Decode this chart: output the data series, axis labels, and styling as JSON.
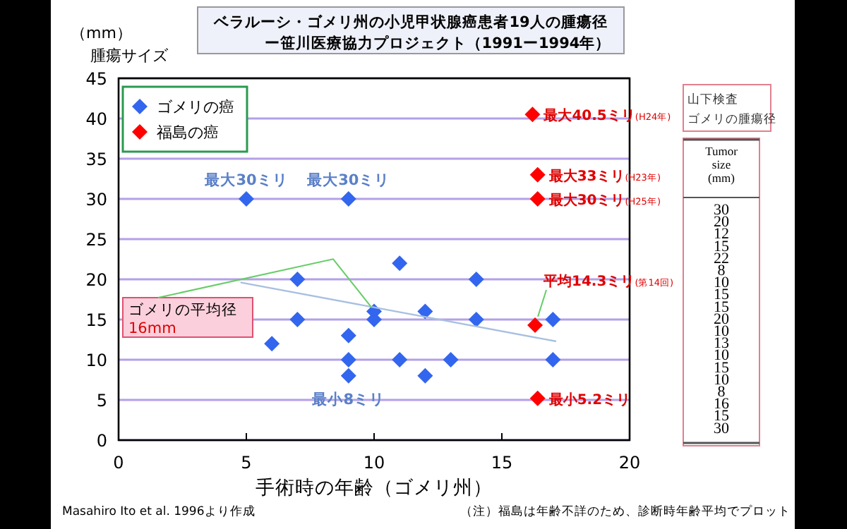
{
  "chart_data": [
    {
      "type": "scatter",
      "title": "ベラルーシ・ゴメリ州の小児甲状腺癌患者19人の腫瘍径",
      "subtitle": "ー笹川医療協力プロジェクト（1991ー1994年）",
      "ylabel": "腫瘍サイズ",
      "xlabel": "手術時の年齢（ゴメリ州）",
      "xlim": [
        0,
        20
      ],
      "xticks": [
        0,
        5,
        10,
        15,
        20
      ],
      "ylim": [
        0,
        45
      ],
      "yticks": [
        0,
        5,
        10,
        15,
        20,
        25,
        30,
        35,
        40,
        45
      ],
      "grid": "y",
      "legend": "top left",
      "marker": "diamond",
      "series": [
        {
          "name": "ゴメリの癌",
          "color": "#3366ee",
          "x": [
            5,
            9,
            7,
            7,
            6,
            9,
            10,
            10,
            11,
            12,
            9,
            9,
            11,
            12,
            13,
            14,
            14,
            17,
            17
          ],
          "values": [
            30,
            30,
            20,
            15,
            12,
            13,
            16,
            15,
            22,
            16,
            10,
            8,
            10,
            8,
            10,
            20,
            15,
            15,
            10
          ]
        },
        {
          "name": "福島の癌",
          "color": "#ff0000",
          "x": [
            16.2,
            16.4,
            16.4,
            16.3,
            16.4
          ],
          "values": [
            40.5,
            33,
            30,
            14.3,
            5.2
          ]
        },
        {
          "type": "line",
          "marker": "none",
          "color": "#a8c0e0",
          "x": [
            4.8,
            17.1
          ],
          "values": [
            19.6,
            12.3
          ]
        }
      ],
      "annotations": [
        {
          "text": "最大30ミリ",
          "x": 5,
          "y": 30
        },
        {
          "text": "最大30ミリ",
          "x": 9,
          "y": 30
        },
        {
          "text": "最小8ミリ",
          "x": 9,
          "y": 8
        },
        {
          "text": "最大40.5ミリ(H24年)",
          "x": 16.2,
          "y": 40.5
        },
        {
          "text": "最大33ミリ(H23年)",
          "x": 16.4,
          "y": 33
        },
        {
          "text": "最大30ミリ(H25年)",
          "x": 16.4,
          "y": 30
        },
        {
          "text": "平均14.3ミリ(第14回)",
          "x": 16.3,
          "y": 14.3
        },
        {
          "text": "最小5.2ミリ",
          "x": 16.4,
          "y": 5.2
        },
        {
          "text": "ゴメリの平均径\n16mm",
          "x": 10,
          "y": 15.5
        },
        "（mm）",
        "Masahiro Ito et al. 1996より作成",
        "（注）福島は年齢不詳のため、診断時年齢平均でプロット"
      ]
    },
    {
      "type": "other",
      "title": "山下検査",
      "subtitle": "ゴメリの腫瘍径",
      "ylabel": "Tumor\nsize\n(mm)",
      "data_labels": true,
      "values": [
        30,
        20,
        12,
        15,
        22,
        8,
        10,
        15,
        15,
        20,
        10,
        13,
        10,
        15,
        10,
        8,
        16,
        15,
        30
      ]
    }
  ]
}
